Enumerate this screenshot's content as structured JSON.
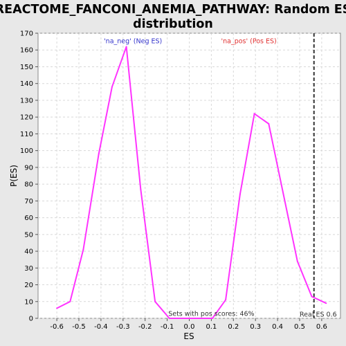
{
  "chart_data": {
    "type": "line",
    "title_line1": "REACTOME_FANCONI_ANEMIA_PATHWAY: Random ES",
    "title_line2": "distribution",
    "xlabel": "ES",
    "ylabel": "P(ES)",
    "xlim": [
      -0.685,
      0.685
    ],
    "ylim": [
      0,
      170
    ],
    "xticks": [
      "-0.6",
      "-0.5",
      "-0.4",
      "-0.3",
      "-0.2",
      "-0.1",
      "0.0",
      "0.1",
      "0.2",
      "0.3",
      "0.4",
      "0.5",
      "0.6"
    ],
    "xtick_values": [
      -0.6,
      -0.5,
      -0.4,
      -0.3,
      -0.2,
      -0.1,
      0.0,
      0.1,
      0.2,
      0.3,
      0.4,
      0.5,
      0.6
    ],
    "yticks": [
      0,
      10,
      20,
      30,
      40,
      50,
      60,
      70,
      80,
      90,
      100,
      110,
      120,
      130,
      140,
      150,
      160,
      170
    ],
    "grid": true,
    "line_color": "#ff33ff",
    "series": [
      {
        "x": [
          -0.6,
          -0.54,
          -0.48,
          -0.41,
          -0.35,
          -0.285,
          -0.22,
          -0.155,
          -0.09,
          -0.03,
          0.04,
          0.105,
          0.165,
          0.23,
          0.295,
          0.36,
          0.42,
          0.49,
          0.555,
          0.62
        ],
        "values": [
          6,
          10,
          41,
          98,
          138,
          162,
          77,
          10,
          0,
          0,
          0,
          0,
          11,
          74,
          122,
          116,
          78,
          34,
          13,
          9
        ]
      }
    ],
    "annotations": {
      "neg": {
        "text": "'na_neg' (Neg ES)",
        "color": "#3333cc",
        "x": -0.255,
        "y": 164
      },
      "pos": {
        "text": "'na_pos' (Pos ES)",
        "color": "#e03030",
        "x": 0.27,
        "y": 164
      },
      "sets": {
        "text": "Sets with pos scores: 46%",
        "color": "#333333",
        "x": -0.095,
        "y": 1.5
      },
      "real": {
        "text": "Real ES 0.6",
        "color": "#333333",
        "x": 0.5,
        "y": 1
      }
    },
    "real_es": 0.565
  }
}
